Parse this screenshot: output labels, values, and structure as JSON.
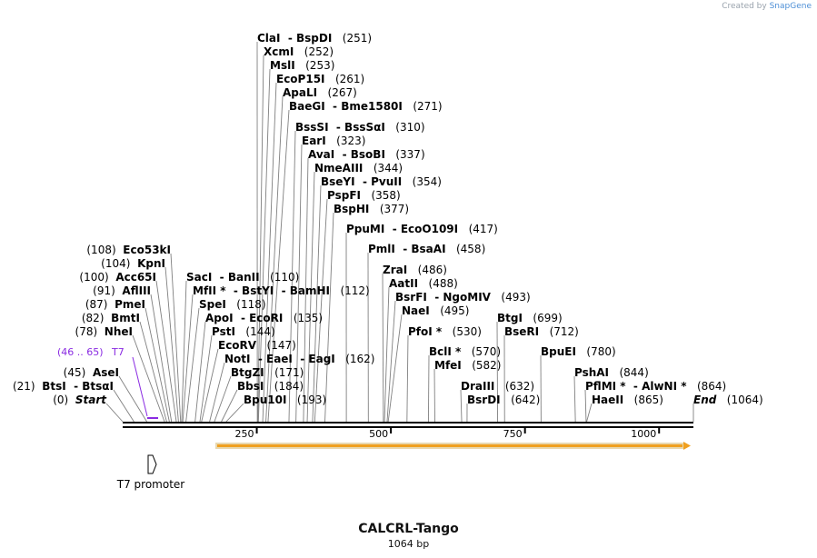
{
  "brand": {
    "prefix": "Created by ",
    "name": "SnapGene"
  },
  "map": {
    "title": "CALCRL-Tango",
    "length_label": "1064 bp",
    "total_bp": 1064,
    "ticks": [
      "250",
      "500",
      "750",
      "1000"
    ],
    "tick_values": [
      250,
      500,
      750,
      1000
    ],
    "primer": {
      "range": "(46 .. 65)",
      "name": "T7",
      "start": 46,
      "end": 65,
      "color": "#8a2be2"
    },
    "orf_color": "#f0a020",
    "feature": {
      "name": "T7 promoter"
    },
    "sites": [
      {
        "text": "ClaI  - BspDI",
        "pos": "(251)",
        "bp": 251
      },
      {
        "text": "XcmI",
        "pos": "(252)",
        "bp": 252
      },
      {
        "text": "MslI",
        "pos": "(253)",
        "bp": 253
      },
      {
        "text": "EcoP15I",
        "pos": "(261)",
        "bp": 261
      },
      {
        "text": "ApaLI",
        "pos": "(267)",
        "bp": 267
      },
      {
        "text": "BaeGI  - Bme1580I",
        "pos": "(271)",
        "bp": 271
      },
      {
        "text": "BssSI  - BssSαI",
        "pos": "(310)",
        "bp": 310
      },
      {
        "text": "EarI",
        "pos": "(323)",
        "bp": 323
      },
      {
        "text": "AvaI  - BsoBI",
        "pos": "(337)",
        "bp": 337
      },
      {
        "text": "NmeAIII",
        "pos": "(344)",
        "bp": 344
      },
      {
        "text": "BseYI  - PvuII",
        "pos": "(354)",
        "bp": 354
      },
      {
        "text": "PspFI",
        "pos": "(358)",
        "bp": 358
      },
      {
        "text": "BspHI",
        "pos": "(377)",
        "bp": 377
      },
      {
        "text": "PpuMI  - EcoO109I",
        "pos": "(417)",
        "bp": 417
      },
      {
        "text": "PmlI  - BsaAI",
        "pos": "(458)",
        "bp": 458
      },
      {
        "text": "ZraI",
        "pos": "(486)",
        "bp": 486
      },
      {
        "text": "AatII",
        "pos": "(488)",
        "bp": 488
      },
      {
        "text": "BsrFI  - NgoMIV",
        "pos": "(493)",
        "bp": 493
      },
      {
        "text": "NaeI",
        "pos": "(495)",
        "bp": 495
      },
      {
        "text": "PfoI *",
        "pos": "(530)",
        "bp": 530
      },
      {
        "text": "BclI *",
        "pos": "(570)",
        "bp": 570
      },
      {
        "text": "MfeI",
        "pos": "(582)",
        "bp": 582
      },
      {
        "text": "DraIII",
        "pos": "(632)",
        "bp": 632
      },
      {
        "text": "BsrDI",
        "pos": "(642)",
        "bp": 642
      },
      {
        "text": "BtgI",
        "pos": "(699)",
        "bp": 699
      },
      {
        "text": "BseRI",
        "pos": "(712)",
        "bp": 712
      },
      {
        "text": "BpuEI",
        "pos": "(780)",
        "bp": 780
      },
      {
        "text": "PshAI",
        "pos": "(844)",
        "bp": 844
      },
      {
        "text": "PflMI *  - AlwNI *",
        "pos": "(864)",
        "bp": 864
      },
      {
        "text": "HaeII",
        "pos": "(865)",
        "bp": 865
      },
      {
        "text": "End",
        "pos": "(1064)",
        "bp": 1064,
        "italic": true
      },
      {
        "text": "SacI  - BanII",
        "pos": "(110)",
        "bp": 110
      },
      {
        "text": "MfII *  - BstYI  - BamHI",
        "pos": "(112)",
        "bp": 112
      },
      {
        "text": "SpeI",
        "pos": "(118)",
        "bp": 118
      },
      {
        "text": "ApoI  - EcoRI",
        "pos": "(135)",
        "bp": 135
      },
      {
        "text": "PstI",
        "pos": "(144)",
        "bp": 144
      },
      {
        "text": "EcoRV",
        "pos": "(147)",
        "bp": 147
      },
      {
        "text": "NotI  - EaeI  - EagI",
        "pos": "(162)",
        "bp": 162
      },
      {
        "text": "BtgZI",
        "pos": "(171)",
        "bp": 171
      },
      {
        "text": "BbsI",
        "pos": "(184)",
        "bp": 184
      },
      {
        "text": "Bpu10I",
        "pos": "(193)",
        "bp": 193
      },
      {
        "text": "Eco53kI",
        "pos": "(108)",
        "bp": 108,
        "left": true
      },
      {
        "text": "KpnI",
        "pos": "(104)",
        "bp": 104,
        "left": true
      },
      {
        "text": "Acc65I",
        "pos": "(100)",
        "bp": 100,
        "left": true
      },
      {
        "text": "AflIII",
        "pos": "(91)",
        "bp": 91,
        "left": true
      },
      {
        "text": "PmeI",
        "pos": "(87)",
        "bp": 87,
        "left": true
      },
      {
        "text": "BmtI",
        "pos": "(82)",
        "bp": 82,
        "left": true
      },
      {
        "text": "NheI",
        "pos": "(78)",
        "bp": 78,
        "left": true
      },
      {
        "text": "AseI",
        "pos": "(45)",
        "bp": 45,
        "left": true
      },
      {
        "text": "BtsI  - BtsαI",
        "pos": "(21)",
        "bp": 21,
        "left": true
      },
      {
        "text": "Start",
        "pos": "(0)",
        "bp": 0,
        "left": true,
        "italic": true
      }
    ]
  }
}
